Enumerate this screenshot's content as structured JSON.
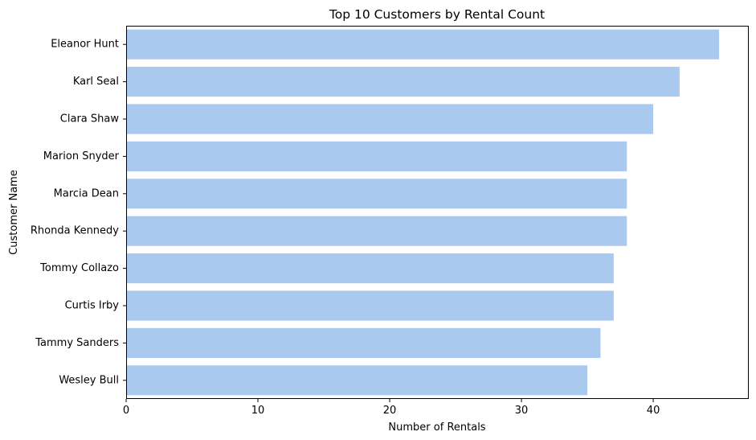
{
  "chart_data": {
    "type": "bar",
    "orientation": "horizontal",
    "title": "Top 10 Customers by Rental Count",
    "xlabel": "Number of Rentals",
    "ylabel": "Customer Name",
    "categories": [
      "Eleanor Hunt",
      "Karl Seal",
      "Clara Shaw",
      "Marion Snyder",
      "Marcia Dean",
      "Rhonda Kennedy",
      "Tommy Collazo",
      "Curtis Irby",
      "Tammy Sanders",
      "Wesley Bull"
    ],
    "values": [
      45,
      42,
      40,
      38,
      38,
      38,
      37,
      37,
      36,
      35
    ],
    "xlim": [
      0,
      47.25
    ],
    "xticks": [
      0,
      10,
      20,
      30,
      40
    ],
    "grid": false,
    "bar_color": "#a9c9ef"
  }
}
